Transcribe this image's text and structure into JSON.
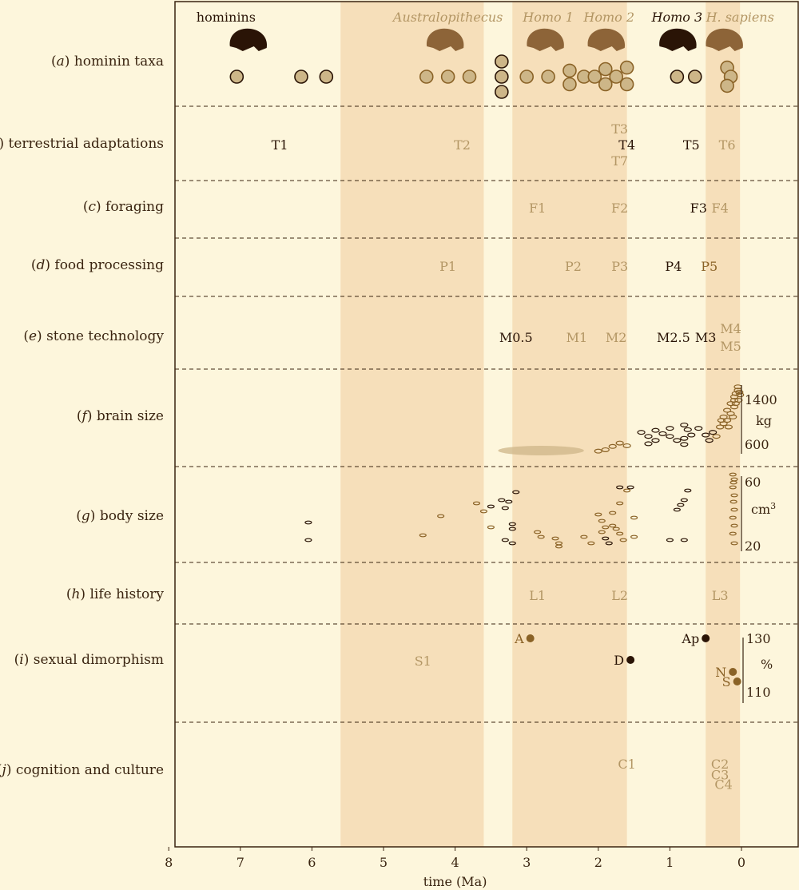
{
  "colors": {
    "background": "#fdf6dc",
    "band": "#f6dfba",
    "axis": "#3a2410",
    "dark": "#2a1406",
    "medium": "#8a6226",
    "light": "#b39664",
    "fill_light": "#cdb688",
    "fill_dark": "#8d6438"
  },
  "chart_data": {
    "type": "scatter",
    "xlabel": "time (Ma)",
    "xlim": [
      8,
      -0.65
    ],
    "x_ticks": [
      "8",
      "7",
      "6",
      "5",
      "4",
      "3",
      "2",
      "1",
      "0"
    ],
    "bands": [
      {
        "from": 5.6,
        "to": 3.6
      },
      {
        "from": 3.2,
        "to": 1.6
      },
      {
        "from": 0.5,
        "to": 0.02
      }
    ],
    "groups": [
      {
        "label": "hominins",
        "x": 7.2,
        "color": "dark",
        "italic": false,
        "skull_x": 6.9
      },
      {
        "label": "Australopithecus",
        "x": 4.1,
        "color": "light",
        "italic": true,
        "skull_x": 4.15
      },
      {
        "label": "Homo 1",
        "x": 2.7,
        "color": "light",
        "italic": true,
        "skull_x": 2.75
      },
      {
        "label": "Homo 2",
        "x": 1.85,
        "color": "light",
        "italic": true,
        "skull_x": 1.9
      },
      {
        "label": "Homo 3",
        "x": 0.9,
        "color": "dark",
        "italic": true,
        "skull_x": 0.9
      },
      {
        "label": "H. sapiens",
        "x": 0.02,
        "color": "light",
        "italic": true,
        "skull_x": 0.25
      }
    ],
    "rows": [
      {
        "id": "a",
        "name": "hominin taxa"
      },
      {
        "id": "b",
        "name": "terrestrial adaptations"
      },
      {
        "id": "c",
        "name": "foraging"
      },
      {
        "id": "d",
        "name": "food processing"
      },
      {
        "id": "e",
        "name": "stone technology"
      },
      {
        "id": "f",
        "name": "brain size"
      },
      {
        "id": "g",
        "name": "body size"
      },
      {
        "id": "h",
        "name": "life history"
      },
      {
        "id": "i",
        "name": "sexual dimorphism"
      },
      {
        "id": "j",
        "name": "cognition and culture"
      }
    ],
    "taxa_circles": [
      {
        "x": 7.05,
        "dy": 0,
        "c": "dark"
      },
      {
        "x": 6.15,
        "dy": 0,
        "c": "dark"
      },
      {
        "x": 5.8,
        "dy": 0,
        "c": "dark"
      },
      {
        "x": 4.4,
        "dy": 0,
        "c": "light"
      },
      {
        "x": 4.1,
        "dy": 0,
        "c": "light"
      },
      {
        "x": 3.8,
        "dy": 0,
        "c": "light"
      },
      {
        "x": 3.35,
        "dy": -1,
        "c": "dark"
      },
      {
        "x": 3.35,
        "dy": 0,
        "c": "dark"
      },
      {
        "x": 3.35,
        "dy": 1,
        "c": "dark"
      },
      {
        "x": 3.0,
        "dy": 0,
        "c": "light"
      },
      {
        "x": 2.7,
        "dy": 0,
        "c": "light"
      },
      {
        "x": 2.4,
        "dy": -0.4,
        "c": "light"
      },
      {
        "x": 2.4,
        "dy": 0.5,
        "c": "light"
      },
      {
        "x": 2.2,
        "dy": 0,
        "c": "light"
      },
      {
        "x": 2.05,
        "dy": 0,
        "c": "light"
      },
      {
        "x": 1.9,
        "dy": -0.5,
        "c": "light"
      },
      {
        "x": 1.9,
        "dy": 0.5,
        "c": "light"
      },
      {
        "x": 1.75,
        "dy": 0,
        "c": "light"
      },
      {
        "x": 1.6,
        "dy": -0.6,
        "c": "light"
      },
      {
        "x": 1.6,
        "dy": 0.5,
        "c": "light"
      },
      {
        "x": 0.9,
        "dy": 0,
        "c": "dark"
      },
      {
        "x": 0.65,
        "dy": 0,
        "c": "dark"
      },
      {
        "x": 0.2,
        "dy": -0.6,
        "c": "light"
      },
      {
        "x": 0.15,
        "dy": 0,
        "c": "light"
      },
      {
        "x": 0.2,
        "dy": 0.6,
        "c": "light"
      }
    ],
    "row_labels": [
      {
        "row": "b",
        "text": "T1",
        "x": 6.45,
        "dy": 0,
        "c": "dark"
      },
      {
        "row": "b",
        "text": "T2",
        "x": 3.9,
        "dy": 0,
        "c": "light"
      },
      {
        "row": "b",
        "text": "T3",
        "x": 1.7,
        "dy": -0.9,
        "c": "light"
      },
      {
        "row": "b",
        "text": "T4",
        "x": 1.6,
        "dy": 0,
        "c": "dark"
      },
      {
        "row": "b",
        "text": "T5",
        "x": 0.7,
        "dy": 0,
        "c": "dark"
      },
      {
        "row": "b",
        "text": "T6",
        "x": 0.2,
        "dy": 0,
        "c": "light"
      },
      {
        "row": "b",
        "text": "T7",
        "x": 1.7,
        "dy": 0.9,
        "c": "light"
      },
      {
        "row": "c",
        "text": "F1",
        "x": 2.85,
        "dy": 0,
        "c": "light"
      },
      {
        "row": "c",
        "text": "F2",
        "x": 1.7,
        "dy": 0,
        "c": "light"
      },
      {
        "row": "c",
        "text": "F3",
        "x": 0.6,
        "dy": 0,
        "c": "dark"
      },
      {
        "row": "c",
        "text": "F4",
        "x": 0.3,
        "dy": 0,
        "c": "light"
      },
      {
        "row": "d",
        "text": "P1",
        "x": 4.1,
        "dy": 0,
        "c": "light"
      },
      {
        "row": "d",
        "text": "P2",
        "x": 2.35,
        "dy": 0,
        "c": "light"
      },
      {
        "row": "d",
        "text": "P3",
        "x": 1.7,
        "dy": 0,
        "c": "light"
      },
      {
        "row": "d",
        "text": "P4",
        "x": 0.95,
        "dy": 0,
        "c": "dark"
      },
      {
        "row": "d",
        "text": "P5",
        "x": 0.45,
        "dy": 0,
        "c": "medium"
      },
      {
        "row": "e",
        "text": "M0.5",
        "x": 3.15,
        "dy": 0,
        "c": "dark"
      },
      {
        "row": "e",
        "text": "M1",
        "x": 2.3,
        "dy": 0,
        "c": "light"
      },
      {
        "row": "e",
        "text": "M2",
        "x": 1.75,
        "dy": 0,
        "c": "light"
      },
      {
        "row": "e",
        "text": "M2.5",
        "x": 0.95,
        "dy": 0,
        "c": "dark"
      },
      {
        "row": "e",
        "text": "M3",
        "x": 0.5,
        "dy": 0,
        "c": "dark"
      },
      {
        "row": "e",
        "text": "M4",
        "x": 0.15,
        "dy": -0.5,
        "c": "light"
      },
      {
        "row": "e",
        "text": "M5",
        "x": 0.15,
        "dy": 0.5,
        "c": "light"
      },
      {
        "row": "h",
        "text": "L1",
        "x": 2.85,
        "dy": 0,
        "c": "light"
      },
      {
        "row": "h",
        "text": "L2",
        "x": 1.7,
        "dy": 0,
        "c": "light"
      },
      {
        "row": "h",
        "text": "L3",
        "x": 0.3,
        "dy": 0,
        "c": "light"
      },
      {
        "row": "i",
        "text": "S1",
        "x": 4.45,
        "dy": 0,
        "c": "light"
      },
      {
        "row": "j",
        "text": "C1",
        "x": 1.6,
        "dy": -0.4,
        "c": "light"
      },
      {
        "row": "j",
        "text": "C2",
        "x": 0.3,
        "dy": -0.4,
        "c": "light"
      },
      {
        "row": "j",
        "text": "C3",
        "x": 0.3,
        "dy": 0.2,
        "c": "light"
      },
      {
        "row": "j",
        "text": "C4",
        "x": 0.25,
        "dy": 0.75,
        "c": "light"
      }
    ],
    "brain_size": {
      "unit": "kg",
      "ticks": [
        "1400",
        "600"
      ],
      "range": [
        500,
        1550
      ],
      "shaded": {
        "x_from": 3.4,
        "x_to": 2.2,
        "value": 480
      },
      "points": [
        [
          2.0,
          540,
          "light"
        ],
        [
          1.9,
          560,
          "light"
        ],
        [
          1.8,
          610,
          "light"
        ],
        [
          1.7,
          660,
          "light"
        ],
        [
          1.6,
          620,
          "light"
        ],
        [
          1.4,
          820,
          "dark"
        ],
        [
          1.3,
          760,
          "dark"
        ],
        [
          1.2,
          700,
          "dark"
        ],
        [
          1.3,
          650,
          "dark"
        ],
        [
          1.2,
          850,
          "dark"
        ],
        [
          1.1,
          800,
          "dark"
        ],
        [
          1.0,
          760,
          "dark"
        ],
        [
          0.9,
          700,
          "dark"
        ],
        [
          1.0,
          880,
          "dark"
        ],
        [
          0.8,
          640,
          "dark"
        ],
        [
          0.8,
          730,
          "dark"
        ],
        [
          0.8,
          930,
          "dark"
        ],
        [
          0.7,
          780,
          "dark"
        ],
        [
          0.75,
          860,
          "dark"
        ],
        [
          0.6,
          880,
          "dark"
        ],
        [
          0.5,
          780,
          "dark"
        ],
        [
          0.45,
          700,
          "dark"
        ],
        [
          0.4,
          820,
          "dark"
        ],
        [
          0.35,
          760,
          "light"
        ],
        [
          0.3,
          900,
          "light"
        ],
        [
          0.25,
          950,
          "light"
        ],
        [
          0.25,
          1050,
          "light"
        ],
        [
          0.2,
          1000,
          "light"
        ],
        [
          0.2,
          1150,
          "light"
        ],
        [
          0.15,
          1100,
          "light"
        ],
        [
          0.15,
          1250,
          "light"
        ],
        [
          0.1,
          1200,
          "light"
        ],
        [
          0.1,
          1300,
          "light"
        ],
        [
          0.1,
          1350,
          "light"
        ],
        [
          0.08,
          1400,
          "light"
        ],
        [
          0.05,
          1450,
          "light"
        ],
        [
          0.05,
          1500,
          "light"
        ],
        [
          0.03,
          1420,
          "light"
        ],
        [
          0.02,
          1380,
          "light"
        ],
        [
          0.12,
          1050,
          "light"
        ],
        [
          0.18,
          900,
          "light"
        ],
        [
          0.28,
          1000,
          "light"
        ],
        [
          0.08,
          1250,
          "light"
        ],
        [
          0.04,
          1300,
          "light"
        ]
      ]
    },
    "body_size": {
      "unit": "cm3",
      "ticks": [
        "60",
        "20"
      ],
      "range": [
        15,
        65
      ],
      "points": [
        [
          6.05,
          33,
          "dark"
        ],
        [
          6.05,
          22,
          "dark"
        ],
        [
          4.45,
          25,
          "light"
        ],
        [
          4.2,
          37,
          "light"
        ],
        [
          3.7,
          45,
          "light"
        ],
        [
          3.6,
          40,
          "light"
        ],
        [
          3.5,
          30,
          "light"
        ],
        [
          3.5,
          43,
          "dark"
        ],
        [
          3.35,
          47,
          "dark"
        ],
        [
          3.25,
          46,
          "dark"
        ],
        [
          3.3,
          42,
          "dark"
        ],
        [
          3.2,
          32,
          "dark"
        ],
        [
          3.2,
          29,
          "dark"
        ],
        [
          3.15,
          52,
          "dark"
        ],
        [
          3.3,
          22,
          "dark"
        ],
        [
          3.2,
          20,
          "dark"
        ],
        [
          2.85,
          27,
          "light"
        ],
        [
          2.8,
          24,
          "light"
        ],
        [
          2.6,
          23,
          "light"
        ],
        [
          2.55,
          20,
          "light"
        ],
        [
          2.55,
          18,
          "light"
        ],
        [
          2.2,
          24,
          "light"
        ],
        [
          2.1,
          20,
          "light"
        ],
        [
          2.0,
          38,
          "light"
        ],
        [
          1.95,
          34,
          "light"
        ],
        [
          1.9,
          30,
          "light"
        ],
        [
          1.95,
          27,
          "light"
        ],
        [
          1.9,
          23,
          "dark"
        ],
        [
          1.85,
          20,
          "dark"
        ],
        [
          1.8,
          31,
          "light"
        ],
        [
          1.75,
          29,
          "light"
        ],
        [
          1.7,
          26,
          "light"
        ],
        [
          1.8,
          39,
          "light"
        ],
        [
          1.7,
          45,
          "light"
        ],
        [
          1.6,
          53,
          "light"
        ],
        [
          1.5,
          36,
          "light"
        ],
        [
          1.5,
          24,
          "light"
        ],
        [
          1.65,
          22,
          "light"
        ],
        [
          1.7,
          55,
          "dark"
        ],
        [
          1.55,
          55,
          "dark"
        ],
        [
          1.0,
          22,
          "dark"
        ],
        [
          0.8,
          22,
          "dark"
        ],
        [
          0.9,
          41,
          "dark"
        ],
        [
          0.85,
          44,
          "dark"
        ],
        [
          0.8,
          47,
          "dark"
        ],
        [
          0.75,
          53,
          "dark"
        ],
        [
          0.1,
          20,
          "light"
        ],
        [
          0.12,
          26,
          "light"
        ],
        [
          0.1,
          31,
          "light"
        ],
        [
          0.12,
          36,
          "light"
        ],
        [
          0.1,
          41,
          "light"
        ],
        [
          0.11,
          46,
          "light"
        ],
        [
          0.1,
          50,
          "light"
        ],
        [
          0.12,
          55,
          "light"
        ],
        [
          0.1,
          60,
          "light"
        ],
        [
          0.12,
          63,
          "light"
        ],
        [
          0.11,
          58,
          "light"
        ]
      ]
    },
    "sexual_dimorphism": {
      "unit": "%",
      "ticks": [
        "130",
        "110"
      ],
      "range": [
        105,
        133
      ],
      "points": [
        {
          "label": "A",
          "x": 2.95,
          "value": 131,
          "c": "medium"
        },
        {
          "label": "Ap",
          "x": 0.5,
          "value": 131,
          "c": "dark"
        },
        {
          "label": "D",
          "x": 1.55,
          "value": 122,
          "c": "dark"
        },
        {
          "label": "N",
          "x": 0.12,
          "value": 117,
          "c": "medium"
        },
        {
          "label": "S",
          "x": 0.06,
          "value": 113,
          "c": "medium"
        }
      ]
    }
  }
}
